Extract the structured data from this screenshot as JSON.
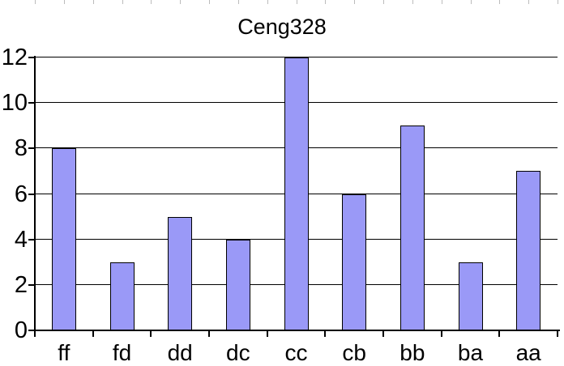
{
  "title": "Ceng328",
  "chart_data": {
    "type": "bar",
    "title": "Ceng328",
    "categories": [
      "ff",
      "fd",
      "dd",
      "dc",
      "cc",
      "cb",
      "bb",
      "ba",
      "aa"
    ],
    "values": [
      8,
      3,
      5,
      4,
      12,
      6,
      9,
      3,
      7
    ],
    "xlabel": "",
    "ylabel": "",
    "ylim": [
      0,
      12
    ],
    "yticks": [
      0,
      2,
      4,
      6,
      8,
      10,
      12
    ],
    "grid": true,
    "legend": "none",
    "bar_color": "#9a99f7",
    "bar_border_color": "#000000",
    "axis_color": "#000000",
    "top_ruler_tick_color": "#bcbcbc"
  }
}
